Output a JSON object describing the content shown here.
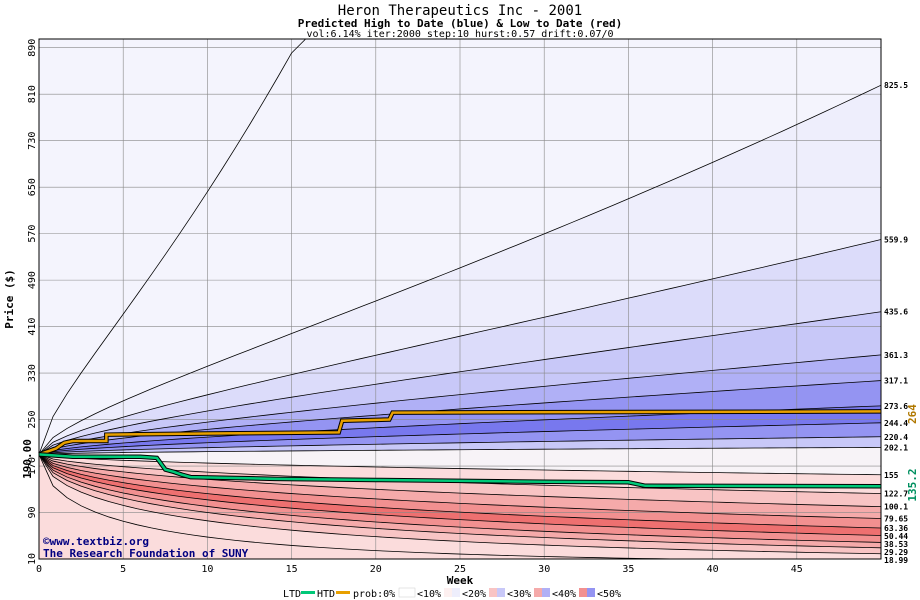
{
  "header": {
    "title": "Heron Therapeutics Inc - 2001",
    "subtitle": "Predicted High to Date (blue) &  Low to Date (red)",
    "params": "vol:6.14% iter:2000 step:10 hurst:0.57 drift:0.07/0"
  },
  "axes": {
    "ylabel": "Price ($)",
    "xlabel": "Week",
    "xlim": [
      0,
      50
    ],
    "ylim": [
      10,
      905
    ],
    "yticks": [
      10,
      90,
      170,
      250,
      330,
      410,
      490,
      570,
      650,
      730,
      810,
      890
    ],
    "xticks": [
      0,
      5,
      10,
      15,
      20,
      25,
      30,
      35,
      40,
      45
    ]
  },
  "watermark": {
    "line1": "©www.textbiz.org",
    "line2": "The Research Foundation of SUNY"
  },
  "legend": {
    "ltd": "LTD",
    "htd": "HTD",
    "prob": "prob:0%",
    "b10": "<10%",
    "b20": "<20%",
    "b30": "<30%",
    "b40": "<40%",
    "b50": "<50%"
  },
  "colors": {
    "htd": "#e8a000",
    "ltd": "#00c878",
    "blue": [
      "#eeeefc",
      "#dcdcfa",
      "#c8c8f8",
      "#b0b0f6",
      "#9494f2",
      "#7878ee"
    ],
    "red": [
      "#fdf0f0",
      "#fbdcdc",
      "#f8c4c4",
      "#f5aaaa",
      "#f29090",
      "#ee7070"
    ]
  },
  "chart_data": {
    "type": "line",
    "start": {
      "label": "190.00",
      "value": 190
    },
    "htd_final": {
      "label": "264",
      "value": 264
    },
    "ltd_final": {
      "label": "135.2",
      "value": 135.2
    },
    "upper_levels": [
      {
        "label": "825.5",
        "value": 825.5
      },
      {
        "label": "559.9",
        "value": 559.9
      },
      {
        "label": "435.6",
        "value": 435.6
      },
      {
        "label": "361.3",
        "value": 361.3
      },
      {
        "label": "317.1",
        "value": 317.1
      },
      {
        "label": "273.6",
        "value": 273.6
      },
      {
        "label": "244.4",
        "value": 244.4
      },
      {
        "label": "220.4",
        "value": 220.4
      },
      {
        "label": "202.1",
        "value": 202.1
      }
    ],
    "lower_levels": [
      {
        "label": "155",
        "value": 155
      },
      {
        "label": "122.7",
        "value": 122.7
      },
      {
        "label": "100.1",
        "value": 100.1
      },
      {
        "label": "79.65",
        "value": 79.65
      },
      {
        "label": "63.36",
        "value": 63.36
      },
      {
        "label": "50.44",
        "value": 50.44
      },
      {
        "label": "38.53",
        "value": 38.53
      },
      {
        "label": "29.29",
        "value": 29.29
      },
      {
        "label": "18.99",
        "value": 18.99
      }
    ],
    "htd_path": [
      [
        0,
        190
      ],
      [
        1,
        200
      ],
      [
        1.5,
        210
      ],
      [
        2,
        213
      ],
      [
        4,
        213
      ],
      [
        4,
        224
      ],
      [
        10,
        226
      ],
      [
        17.8,
        228
      ],
      [
        18,
        248
      ],
      [
        20.8,
        250
      ],
      [
        21,
        262
      ],
      [
        50,
        264
      ]
    ],
    "ltd_path": [
      [
        0,
        190
      ],
      [
        2,
        186
      ],
      [
        6,
        186
      ],
      [
        7,
        184
      ],
      [
        7.5,
        164
      ],
      [
        8,
        160
      ],
      [
        8.5,
        155
      ],
      [
        9,
        151
      ],
      [
        14,
        148
      ],
      [
        20,
        146
      ],
      [
        30,
        143
      ],
      [
        35,
        142
      ],
      [
        36,
        136
      ],
      [
        50,
        135.2
      ]
    ]
  }
}
